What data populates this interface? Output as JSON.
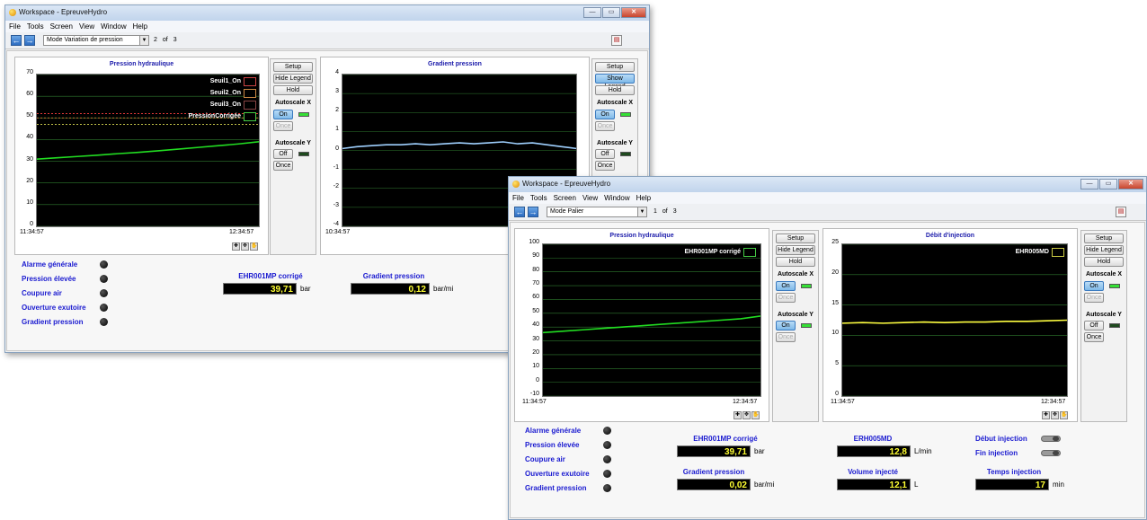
{
  "window1": {
    "title": "Workspace - EpreuveHydro",
    "menu": [
      "File",
      "Tools",
      "Screen",
      "View",
      "Window",
      "Help"
    ],
    "screen_name": "Mode Variation de pression",
    "page_current": "2",
    "page_of": "of",
    "page_total": "3",
    "chart1": {
      "title": "Pression hydraulique",
      "yticks": [
        "70",
        "60",
        "50",
        "40",
        "30",
        "20",
        "10",
        "0"
      ],
      "x_start": "11:34:57",
      "x_end": "12:34:57",
      "legend": [
        "Seuil1_On",
        "Seuil2_On",
        "Seuil3_On",
        "PressionCorrigée"
      ]
    },
    "chart1_ctrl": {
      "setup": "Setup",
      "legend_btn": "Hide Legend",
      "hold": "Hold",
      "autoscale_x": "Autoscale X",
      "ax_on": "On",
      "ax_once": "Once",
      "autoscale_y": "Autoscale Y",
      "ay_off": "Off",
      "ay_once": "Once"
    },
    "chart2": {
      "title": "Gradient pression",
      "yticks": [
        "4",
        "3",
        "2",
        "1",
        "0",
        "-1",
        "-2",
        "-3",
        "-4"
      ],
      "x_start": "10:34:57"
    },
    "chart2_ctrl": {
      "setup": "Setup",
      "legend_btn": "Show Legend",
      "hold": "Hold",
      "autoscale_x": "Autoscale X",
      "ax_on": "On",
      "ax_once": "Once",
      "autoscale_y": "Autoscale Y",
      "ay_off": "Off",
      "ay_once": "Once"
    },
    "alarms": [
      "Alarme générale",
      "Pression élevée",
      "Coupure air",
      "Ouverture exutoire",
      "Gradient pression"
    ],
    "ind1": {
      "label": "EHR001MP corrigé",
      "value": "39,71",
      "unit": "bar"
    },
    "ind2": {
      "label": "Gradient pression",
      "value": "0,12",
      "unit": "bar/mi"
    }
  },
  "window2": {
    "title": "Workspace - EpreuveHydro",
    "menu": [
      "File",
      "Tools",
      "Screen",
      "View",
      "Window",
      "Help"
    ],
    "screen_name": "Mode Palier",
    "page_current": "1",
    "page_of": "of",
    "page_total": "3",
    "chart1": {
      "title": "Pression hydraulique",
      "yticks": [
        "100",
        "90",
        "80",
        "70",
        "60",
        "50",
        "40",
        "30",
        "20",
        "10",
        "0",
        "-10"
      ],
      "x_start": "11:34:57",
      "x_end": "12:34:57",
      "legend": [
        "EHR001MP corrigé"
      ]
    },
    "chart1_ctrl": {
      "setup": "Setup",
      "legend_btn": "Hide Legend",
      "hold": "Hold",
      "autoscale_x": "Autoscale X",
      "ax_on": "On",
      "ax_once": "Once",
      "autoscale_y": "Autoscale Y",
      "ay_on": "On",
      "ay_once": "Once"
    },
    "chart2": {
      "title": "Débit d'injection",
      "yticks": [
        "25",
        "20",
        "15",
        "10",
        "5",
        "0"
      ],
      "x_start": "11:34:57",
      "x_end": "12:34:57",
      "legend": [
        "EHR005MD"
      ]
    },
    "chart2_ctrl": {
      "setup": "Setup",
      "legend_btn": "Hide Legend",
      "hold": "Hold",
      "autoscale_x": "Autoscale X",
      "ax_on": "On",
      "ax_once": "Once",
      "autoscale_y": "Autoscale Y",
      "ay_off": "Off",
      "ay_once": "Once"
    },
    "alarms": [
      "Alarme générale",
      "Pression élevée",
      "Coupure air",
      "Ouverture exutoire",
      "Gradient pression"
    ],
    "ind1": {
      "label": "EHR001MP corrigé",
      "value": "39,71",
      "unit": "bar"
    },
    "ind2": {
      "label": "Gradient pression",
      "value": "0,02",
      "unit": "bar/mi"
    },
    "ind3": {
      "label": "ERH005MD",
      "value": "12,8",
      "unit": "L/min"
    },
    "ind4": {
      "label": "Volume injecté",
      "value": "12,1",
      "unit": "L"
    },
    "ind5": {
      "label": "Temps injection",
      "value": "17",
      "unit": "min"
    },
    "switch1": "Début injection",
    "switch2": "Fin injection"
  },
  "chart_data": [
    {
      "type": "line",
      "title": "Pression hydraulique",
      "ylim": [
        0,
        70
      ],
      "x_range": [
        "11:34:57",
        "12:34:57"
      ],
      "series": [
        {
          "name": "PressionCorrigée",
          "color": "#22dd22",
          "values": [
            31,
            31.6,
            32.2,
            32.8,
            33.5,
            34.1,
            34.8,
            35.6,
            36.4,
            37.2,
            38,
            39
          ]
        },
        {
          "name": "Seuil1_On",
          "color": "#ff4040",
          "values": [
            52,
            52
          ]
        },
        {
          "name": "Seuil2_On",
          "color": "#ff8c40",
          "values": [
            50,
            50
          ]
        },
        {
          "name": "Seuil3_On",
          "color": "#ffff60",
          "values": [
            47,
            47
          ]
        }
      ]
    },
    {
      "type": "line",
      "title": "Gradient pression",
      "ylim": [
        -4,
        4
      ],
      "series": [
        {
          "color": "#9fd0ff",
          "values": [
            0.1,
            0.2,
            0.25,
            0.3,
            0.3,
            0.35,
            0.3,
            0.35,
            0.4,
            0.35,
            0.4,
            0.45,
            0.35,
            0.4,
            0.3,
            0.2,
            0.1
          ]
        }
      ]
    },
    {
      "type": "line",
      "title": "Pression hydraulique",
      "ylim": [
        -10,
        100
      ],
      "x_range": [
        "11:34:57",
        "12:34:57"
      ],
      "series": [
        {
          "name": "EHR001MP corrigé",
          "color": "#22dd22",
          "values": [
            36,
            37,
            38,
            39,
            40,
            41,
            42,
            43,
            44,
            45,
            46,
            48
          ]
        }
      ]
    },
    {
      "type": "line",
      "title": "Débit d'injection",
      "ylim": [
        0,
        25
      ],
      "x_range": [
        "11:34:57",
        "12:34:57"
      ],
      "series": [
        {
          "name": "EHR005MD",
          "color": "#ffff40",
          "values": [
            12,
            12.1,
            12.0,
            12.1,
            12.2,
            12.1,
            12.2,
            12.2,
            12.3,
            12.3,
            12.4,
            12.5
          ]
        }
      ]
    }
  ]
}
